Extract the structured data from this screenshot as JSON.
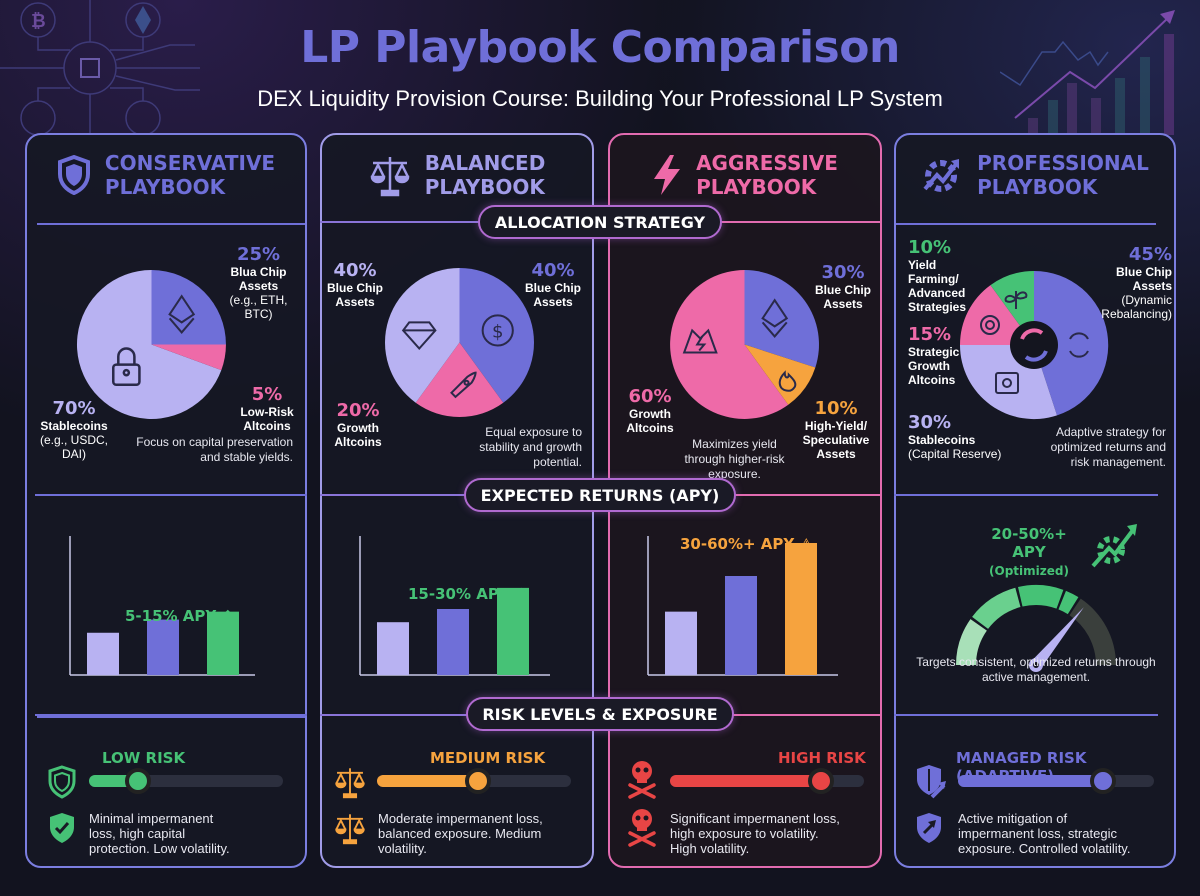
{
  "header": {
    "title": "LP Playbook Comparison",
    "subtitle": "DEX Liquidity Provision Course: Building Your Professional LP System"
  },
  "sections": {
    "allocation": "ALLOCATION STRATEGY",
    "returns": "EXPECTED RETURNS (APY)",
    "risk": "RISK LEVELS & EXPOSURE"
  },
  "colors": {
    "lavender": "#b8b2f2",
    "indigo": "#6f6fd8",
    "pink": "#ee6aa8",
    "orange": "#f6a33e",
    "green": "#46c276",
    "red": "#e84545"
  },
  "playbooks": [
    {
      "key": "conservative",
      "title_line1": "CONSERVATIVE",
      "title_line2": "PLAYBOOK",
      "icon": "shield-icon",
      "allocation": [
        {
          "pct": "70%",
          "value": 70,
          "label": "Stablecoins",
          "detail": "(e.g., USDC, DAI)",
          "color": "#b8b2f2",
          "icon": "lock-icon"
        },
        {
          "pct": "25%",
          "value": 25,
          "label": "Blua Chip Assets",
          "detail": "(e.g., ETH, BTC)",
          "color": "#6f6fd8",
          "icon": "ethereum-icon"
        },
        {
          "pct": "5%",
          "value": 5,
          "label": "Low-Risk Altcoins",
          "detail": "",
          "color": "#ee6aa8",
          "icon": "coins-icon"
        }
      ],
      "allocation_note": "Focus on capital preservation and stable yields.",
      "apy_label": "5-15% APY",
      "apy_bars": [
        0.32,
        0.42,
        0.48
      ],
      "apy_bar_colors": [
        "#b8b2f2",
        "#6f6fd8",
        "#46c276"
      ],
      "risk_label": "LOW RISK",
      "risk_level": 0.25,
      "risk_color": "#46c276",
      "risk_desc": "Minimal impermanent loss, high capital protection. Low volatility."
    },
    {
      "key": "balanced",
      "title_line1": "BALANCED",
      "title_line2": "PLAYBOOK",
      "icon": "scales-icon",
      "allocation": [
        {
          "pct": "40%",
          "value": 40,
          "label": "Blue Chip Assets",
          "detail": "",
          "color": "#6f6fd8",
          "icon": "dollar-icon"
        },
        {
          "pct": "20%",
          "value": 20,
          "label": "Growth Altcoins",
          "detail": "",
          "color": "#ee6aa8",
          "icon": "rocket-icon"
        },
        {
          "pct": "40%",
          "value": 40,
          "label": "Blue Chip Assets",
          "detail": "",
          "color": "#b8b2f2",
          "icon": "diamond-icon"
        }
      ],
      "allocation_note": "Equal exposure to stability and growth potential.",
      "apy_label": "15-30% APY",
      "apy_bars": [
        0.4,
        0.5,
        0.66
      ],
      "apy_bar_colors": [
        "#b8b2f2",
        "#6f6fd8",
        "#46c276"
      ],
      "risk_label": "MEDIUM RISK",
      "risk_level": 0.52,
      "risk_color": "#f6a33e",
      "risk_desc": "Moderate impermanent loss, balanced exposure. Medium volatility."
    },
    {
      "key": "aggressive",
      "title_line1": "AGGRESSIVE",
      "title_line2": "PLAYBOOK",
      "icon": "lightning-icon",
      "allocation": [
        {
          "pct": "30%",
          "value": 30,
          "label": "Blue Chip Assets",
          "detail": "",
          "color": "#6f6fd8",
          "icon": "ethereum-icon"
        },
        {
          "pct": "10%",
          "value": 10,
          "label": "High-Yield/ Speculative Assets",
          "detail": "",
          "color": "#f6a33e",
          "icon": "fire-icon"
        },
        {
          "pct": "60%",
          "value": 60,
          "label": "Growth Altcoins",
          "detail": "",
          "color": "#ee6aa8",
          "icon": "volcano-icon"
        }
      ],
      "allocation_note": "Maximizes yield through higher-risk exposure.",
      "apy_label": "30-60%+ APY",
      "apy_bars": [
        0.48,
        0.75,
        1.0
      ],
      "apy_bar_colors": [
        "#b8b2f2",
        "#6f6fd8",
        "#f6a33e"
      ],
      "risk_label": "HIGH RISK",
      "risk_level": 0.78,
      "risk_color": "#e84545",
      "risk_desc": "Significant impermanent loss, high exposure to volatility. High volatility."
    },
    {
      "key": "professional",
      "title_line1": "PROFESSIONAL",
      "title_line2": "PLAYBOOK",
      "icon": "gear-chart-icon",
      "allocation": [
        {
          "pct": "45%",
          "value": 45,
          "label": "Blue Chip Assets",
          "detail": "(Dynamic Rebalancing)",
          "color": "#6f6fd8",
          "icon": "refresh-icon"
        },
        {
          "pct": "30%",
          "value": 30,
          "label": "Stablecoins",
          "detail": "(Capital Reserve)",
          "color": "#b8b2f2",
          "icon": "safe-icon"
        },
        {
          "pct": "15%",
          "value": 15,
          "label": "Strategic Growth Altcoins",
          "detail": "",
          "color": "#ee6aa8",
          "icon": "target-icon"
        },
        {
          "pct": "10%",
          "value": 10,
          "label": "Yield Farming/ Advanced Strategies",
          "detail": "",
          "color": "#46c276",
          "icon": "sprout-icon"
        }
      ],
      "allocation_note": "Adaptive strategy for optimized returns and risk management.",
      "apy_label": "20-50%+ APY",
      "apy_sublabel": "(Optimized)",
      "gauge_level": 0.72,
      "apy_note": "Targets consistent, optimized returns through active management.",
      "risk_label": "MANAGED RISK (ADAPTIVE)",
      "risk_level": 0.74,
      "risk_color": "#6f6fd8",
      "risk_desc": "Active mitigation of impermanent loss, strategic exposure. Controlled volatility."
    }
  ]
}
